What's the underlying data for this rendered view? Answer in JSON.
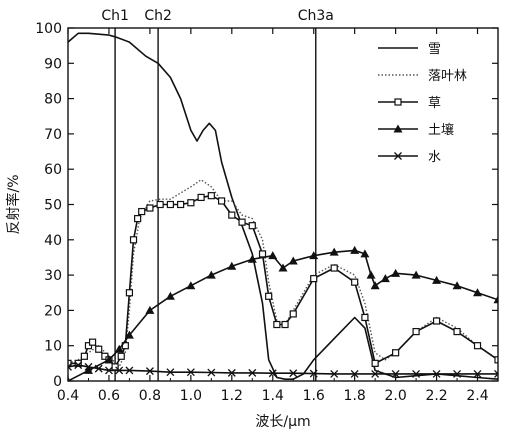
{
  "chart_data": {
    "type": "line",
    "xlabel": "波长/μm",
    "ylabel": "反射率/%",
    "xlim": [
      0.4,
      2.5
    ],
    "ylim": [
      0,
      100
    ],
    "x_ticks": [
      0.4,
      0.6,
      0.8,
      1.0,
      1.2,
      1.4,
      1.6,
      1.8,
      2.0,
      2.2,
      2.4
    ],
    "x_tick_labels": [
      "0.4",
      "0.6",
      "0.8",
      "1.0",
      "1.2",
      "1.4",
      "1.6",
      "1.8",
      "2.0",
      "2.2",
      "2.4"
    ],
    "y_ticks": [
      0,
      10,
      20,
      30,
      40,
      50,
      60,
      70,
      80,
      90,
      100
    ],
    "y_tick_labels": [
      "0",
      "10",
      "20",
      "30",
      "40",
      "50",
      "60",
      "70",
      "80",
      "90",
      "100"
    ],
    "grid": false,
    "legend_position": "top-right",
    "bands": [
      {
        "label": "Ch1",
        "x": 0.63
      },
      {
        "label": "Ch2",
        "x": 0.84
      },
      {
        "label": "Ch3a",
        "x": 1.61
      }
    ],
    "series": [
      {
        "name": "雪",
        "style": "solid",
        "marker": "none",
        "color": "#111111",
        "x": [
          0.4,
          0.45,
          0.5,
          0.6,
          0.63,
          0.7,
          0.78,
          0.84,
          0.9,
          0.95,
          1.0,
          1.03,
          1.06,
          1.09,
          1.12,
          1.15,
          1.2,
          1.25,
          1.3,
          1.35,
          1.38,
          1.42,
          1.46,
          1.5,
          1.55,
          1.6,
          1.7,
          1.8,
          1.85,
          1.9,
          2.0,
          2.1,
          2.2,
          2.3,
          2.4,
          2.5
        ],
        "y": [
          96,
          98.5,
          98.5,
          98,
          97.5,
          96,
          92,
          90,
          86,
          80,
          71,
          68,
          71,
          73,
          71,
          62,
          52,
          44,
          36,
          22,
          6,
          1,
          0.5,
          0.5,
          2,
          6,
          12,
          18,
          15,
          3,
          1,
          1.5,
          2,
          1.5,
          1,
          0.5
        ]
      },
      {
        "name": "落叶林",
        "style": "dotted",
        "marker": "none",
        "color": "#555555",
        "x": [
          0.4,
          0.45,
          0.5,
          0.55,
          0.6,
          0.65,
          0.68,
          0.7,
          0.72,
          0.75,
          0.8,
          0.85,
          0.9,
          1.0,
          1.05,
          1.1,
          1.15,
          1.2,
          1.25,
          1.3,
          1.35,
          1.38,
          1.42,
          1.46,
          1.5,
          1.6,
          1.7,
          1.8,
          1.85,
          1.9,
          1.95,
          2.0,
          2.1,
          2.2,
          2.3,
          2.4,
          2.5
        ],
        "y": [
          5,
          6,
          8,
          10,
          7,
          4,
          8,
          20,
          36,
          46,
          51,
          51.5,
          51.5,
          55,
          57,
          55,
          51,
          51,
          47,
          46,
          40,
          28,
          17,
          16,
          20,
          30,
          33,
          30,
          22,
          8,
          6,
          8,
          14,
          18,
          15,
          10,
          6
        ]
      },
      {
        "name": "草",
        "style": "solid",
        "marker": "open-square",
        "color": "#111111",
        "x": [
          0.4,
          0.45,
          0.48,
          0.5,
          0.52,
          0.55,
          0.58,
          0.6,
          0.63,
          0.66,
          0.68,
          0.7,
          0.72,
          0.74,
          0.76,
          0.8,
          0.85,
          0.9,
          0.95,
          1.0,
          1.05,
          1.1,
          1.15,
          1.2,
          1.25,
          1.3,
          1.35,
          1.38,
          1.42,
          1.46,
          1.5,
          1.6,
          1.7,
          1.8,
          1.85,
          1.9,
          2.0,
          2.1,
          2.2,
          2.3,
          2.4,
          2.5
        ],
        "y": [
          5,
          5,
          7,
          10,
          11,
          9,
          7,
          6,
          4,
          7,
          10,
          25,
          40,
          46,
          48,
          49,
          50,
          50,
          50,
          50.5,
          52,
          52.5,
          51,
          47,
          45,
          44,
          36,
          24,
          16,
          16,
          19,
          29,
          32,
          28,
          18,
          5,
          8,
          14,
          17,
          14,
          10,
          6
        ]
      },
      {
        "name": "土壤",
        "style": "solid",
        "marker": "filled-triangle",
        "color": "#111111",
        "x": [
          0.4,
          0.5,
          0.6,
          0.65,
          0.7,
          0.8,
          0.9,
          1.0,
          1.1,
          1.2,
          1.3,
          1.4,
          1.45,
          1.5,
          1.6,
          1.7,
          1.8,
          1.85,
          1.88,
          1.9,
          1.95,
          2.0,
          2.1,
          2.2,
          2.3,
          2.4,
          2.5
        ],
        "y": [
          0,
          3,
          6,
          9,
          13,
          20,
          24,
          27,
          30,
          32.5,
          34.5,
          35.5,
          32,
          34,
          35.5,
          36.5,
          37,
          36,
          30,
          27,
          29,
          30.5,
          30,
          28.5,
          27,
          25,
          23
        ]
      },
      {
        "name": "水",
        "style": "solid",
        "marker": "x",
        "color": "#111111",
        "x": [
          0.4,
          0.45,
          0.5,
          0.55,
          0.6,
          0.65,
          0.7,
          0.8,
          0.9,
          1.0,
          1.1,
          1.2,
          1.3,
          1.4,
          1.5,
          1.6,
          1.7,
          1.8,
          1.9,
          2.0,
          2.1,
          2.2,
          2.3,
          2.4,
          2.5
        ],
        "y": [
          4,
          4.5,
          4,
          3.5,
          3,
          3,
          3,
          2.8,
          2.5,
          2.5,
          2.4,
          2.3,
          2.3,
          2.2,
          2.2,
          2.1,
          2,
          2,
          2,
          2,
          2,
          2,
          2,
          2,
          2
        ]
      }
    ]
  }
}
